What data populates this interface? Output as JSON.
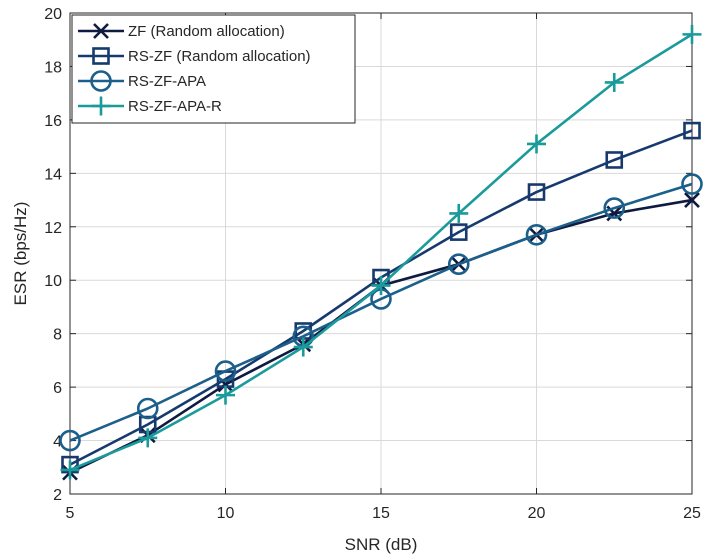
{
  "chart_data": {
    "type": "line",
    "title": "",
    "xlabel": "SNR (dB)",
    "ylabel": "ESR (bps/Hz)",
    "xlim": [
      5,
      25
    ],
    "ylim": [
      2,
      20
    ],
    "xticks": [
      5,
      10,
      15,
      20,
      25
    ],
    "yticks": [
      2,
      4,
      6,
      8,
      10,
      12,
      14,
      16,
      18,
      20
    ],
    "grid": true,
    "legend_position": "top-left",
    "x": [
      5,
      7.5,
      10,
      12.5,
      15,
      17.5,
      20,
      22.5,
      25
    ],
    "series": [
      {
        "name": "ZF (Random allocation)",
        "marker": "x",
        "color": "#0f1a40",
        "values": [
          2.8,
          4.2,
          6.1,
          7.6,
          9.8,
          10.6,
          11.7,
          12.5,
          13.0
        ]
      },
      {
        "name": "RS-ZF (Random allocation)",
        "marker": "square",
        "color": "#173a6e",
        "values": [
          3.1,
          4.6,
          6.3,
          8.1,
          10.1,
          11.8,
          13.3,
          14.5,
          15.6
        ]
      },
      {
        "name": "RS-ZF-APA",
        "marker": "circle",
        "color": "#1c5f8a",
        "values": [
          4.0,
          5.2,
          6.6,
          7.9,
          9.3,
          10.6,
          11.7,
          12.7,
          13.6
        ]
      },
      {
        "name": "RS-ZF-APA-R",
        "marker": "plus",
        "color": "#1a9a9a",
        "values": [
          2.9,
          4.1,
          5.7,
          7.5,
          9.8,
          12.5,
          15.1,
          17.4,
          19.2
        ]
      }
    ]
  }
}
